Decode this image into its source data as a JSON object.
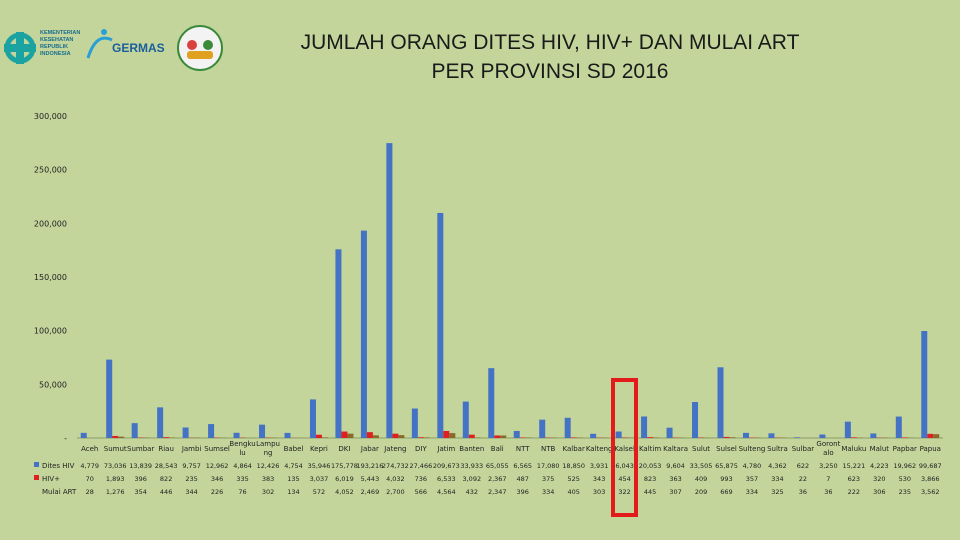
{
  "logos": {
    "kemenkes": "KEMENTERIAN KESEHATAN REPUBLIK INDONESIA",
    "germas": "GERMAS"
  },
  "colors": {
    "background": "#c3d59b",
    "series_hiv_test": "#4472c4",
    "series_hiv_pos": "#e02020",
    "series_art": "#8a6a2a",
    "highlight": "#e31b1b"
  },
  "chart_data": {
    "type": "bar",
    "title": "JUMLAH ORANG DITES HIV, HIV+ DAN MULAI ART PER PROVINSI SD 2016",
    "title_lines": [
      "JUMLAH ORANG DITES HIV, HIV+ DAN MULAI ART",
      "PER PROVINSI SD 2016"
    ],
    "ylim": [
      0,
      300000
    ],
    "yticks": [
      0,
      50000,
      100000,
      150000,
      200000,
      250000,
      300000
    ],
    "ytick_labels": [
      "-",
      "50,000",
      "100,000",
      "150,000",
      "200,000",
      "250,000",
      "300,000"
    ],
    "grid": false,
    "legend": "table-left",
    "categories": [
      "Aceh",
      "Sumut",
      "Sumbar",
      "Riau",
      "Jambi",
      "Sumsel",
      "Bengkulu",
      "Lampung",
      "Babel",
      "Kepri",
      "DKI",
      "Jabar",
      "Jateng",
      "DIY",
      "Jatim",
      "Banten",
      "Bali",
      "NTT",
      "NTB",
      "Kalbar",
      "Kalteng",
      "Kalsel",
      "Kaltim",
      "Kaltara",
      "Sulut",
      "Sulsel",
      "Sulteng",
      "Sultra",
      "Sulbar",
      "Gorontalo",
      "Maluku",
      "Malut",
      "Papbar",
      "Papua"
    ],
    "category_labels": [
      "Aceh",
      "Sumut",
      "Sumbar",
      "Riau",
      "Jambi",
      "Sumsel",
      "Bengku\nlu",
      "Lampu\nng",
      "Babel",
      "Kepri",
      "DKI",
      "Jabar",
      "Jateng",
      "DIY",
      "Jatim",
      "Banten",
      "Bali",
      "NTT",
      "NTB",
      "Kalbar",
      "Kalteng",
      "Kalsel",
      "Kaltim",
      "Kaltara",
      "Sulut",
      "Sulsel",
      "Sulteng",
      "Sultra",
      "Sulbar",
      "Goront\nalo",
      "Maluku",
      "Malut",
      "Papbar",
      "Papua"
    ],
    "series": [
      {
        "name": "Dites HIV",
        "values": [
          4779,
          73036,
          13839,
          28543,
          9757,
          12962,
          4864,
          12426,
          4754,
          35946,
          175778,
          193216,
          274732,
          27466,
          209673,
          33933,
          65055,
          6565,
          17080,
          18850,
          3931,
          6043,
          20053,
          9604,
          33505,
          65875,
          4780,
          4362,
          622,
          3250,
          15221,
          4223,
          19962,
          99687
        ],
        "labels": [
          "4,779",
          "73,036",
          "13,839",
          "28,543",
          "9,757",
          "12,962",
          "4,864",
          "12,426",
          "4,754",
          "35,946",
          "175,778",
          "193,216",
          "274,732",
          "27,466",
          "209,673",
          "33,933",
          "65,055",
          "6,565",
          "17,080",
          "18,850",
          "3,931",
          "6,043",
          "20,053",
          "9,604",
          "33,505",
          "65,875",
          "4,780",
          "4,362",
          "622",
          "3,250",
          "15,221",
          "4,223",
          "19,962",
          "99,687"
        ]
      },
      {
        "name": "HIV+",
        "values": [
          70,
          1893,
          396,
          822,
          235,
          346,
          335,
          383,
          135,
          3037,
          6019,
          5443,
          4032,
          736,
          6533,
          3092,
          2367,
          487,
          375,
          525,
          343,
          454,
          823,
          363,
          409,
          993,
          357,
          334,
          22,
          7,
          623,
          320,
          530,
          3866
        ],
        "labels": [
          "70",
          "1,893",
          "396",
          "822",
          "235",
          "346",
          "335",
          "383",
          "135",
          "3,037",
          "6,019",
          "5,443",
          "4,032",
          "736",
          "6,533",
          "3,092",
          "2,367",
          "487",
          "375",
          "525",
          "343",
          "454",
          "823",
          "363",
          "409",
          "993",
          "357",
          "334",
          "22",
          "7",
          "623",
          "320",
          "530",
          "3,866"
        ]
      },
      {
        "name": "Mulai ART",
        "values": [
          28,
          1276,
          354,
          446,
          344,
          226,
          76,
          302,
          134,
          572,
          4052,
          2469,
          2700,
          566,
          4564,
          432,
          2347,
          396,
          334,
          405,
          303,
          322,
          445,
          307,
          209,
          669,
          334,
          325,
          36,
          36,
          222,
          306,
          235,
          3562
        ],
        "labels": [
          "28",
          "1,276",
          "354",
          "446",
          "344",
          "226",
          "76",
          "302",
          "134",
          "572",
          "4,052",
          "2,469",
          "2,700",
          "566",
          "4,564",
          "432",
          "2,347",
          "396",
          "334",
          "405",
          "303",
          "322",
          "445",
          "307",
          "209",
          "669",
          "334",
          "325",
          "36",
          "36",
          "222",
          "306",
          "235",
          "3,562"
        ]
      }
    ]
  }
}
